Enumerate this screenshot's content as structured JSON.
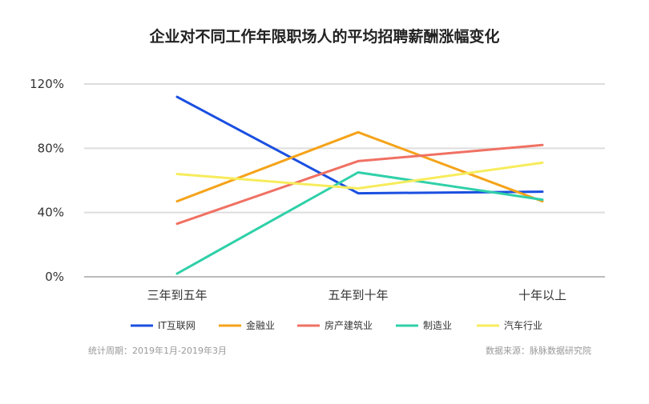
{
  "chart_data": {
    "type": "line",
    "title": "企业对不同工作年限职场人的平均招聘薪酬涨幅变化",
    "categories": [
      "三年到五年",
      "五年到十年",
      "十年以上"
    ],
    "y_ticks": [
      "0%",
      "40%",
      "80%",
      "120%"
    ],
    "ylim": [
      0,
      120
    ],
    "grid": true,
    "legend_position": "bottom",
    "series": [
      {
        "name": "IT互联网",
        "color": "#1a4fe0",
        "values": [
          112,
          52,
          53
        ]
      },
      {
        "name": "金融业",
        "color": "#f5a31a",
        "values": [
          47,
          90,
          47
        ]
      },
      {
        "name": "房产建筑业",
        "color": "#f07163",
        "values": [
          33,
          72,
          82
        ]
      },
      {
        "name": "制造业",
        "color": "#2fd0a8",
        "values": [
          2,
          65,
          48
        ]
      },
      {
        "name": "汽车行业",
        "color": "#f7ec5c",
        "values": [
          64,
          55,
          71
        ]
      }
    ]
  },
  "footer": {
    "period": "统计周期：2019年1月-2019年3月",
    "source": "数据来源：脉脉数据研究院"
  }
}
